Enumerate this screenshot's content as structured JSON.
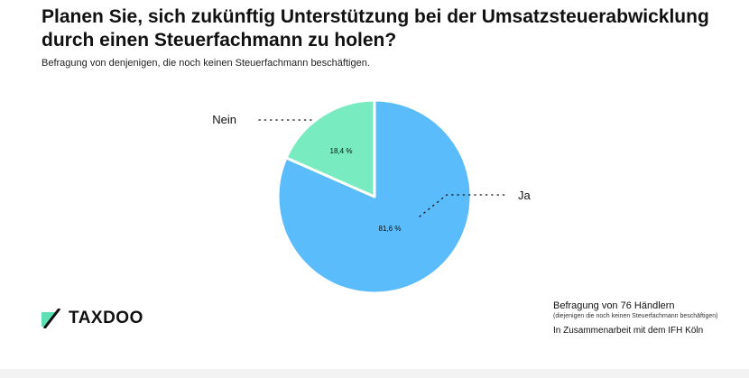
{
  "title": "Planen Sie, sich zukünftig Unterstützung bei der Umsatzsteuerabwicklung durch einen Steuerfachmann zu holen?",
  "subtitle": "Befragung von denjenigen, die noch keinen Steuerfachmann beschäftigen.",
  "brand": {
    "name": "TAXDOO",
    "accent_color": "#5fe0b4"
  },
  "source": {
    "main": "Befragung von 76 Händlern",
    "note": "(diejenigen die noch keinen Steuerfachmann beschäftigen)",
    "credit": "In Zusammenarbeit mit dem IFH Köln"
  },
  "chart_data": {
    "type": "pie",
    "slices": [
      {
        "label": "Ja",
        "value": 81.6,
        "value_label": "81,6 %",
        "color": "#5bbcfb"
      },
      {
        "label": "Nein",
        "value": 18.4,
        "value_label": "18,4 %",
        "color": "#78ebc0"
      }
    ],
    "start": "12 o'clock",
    "direction": "clockwise",
    "legend": "none"
  }
}
